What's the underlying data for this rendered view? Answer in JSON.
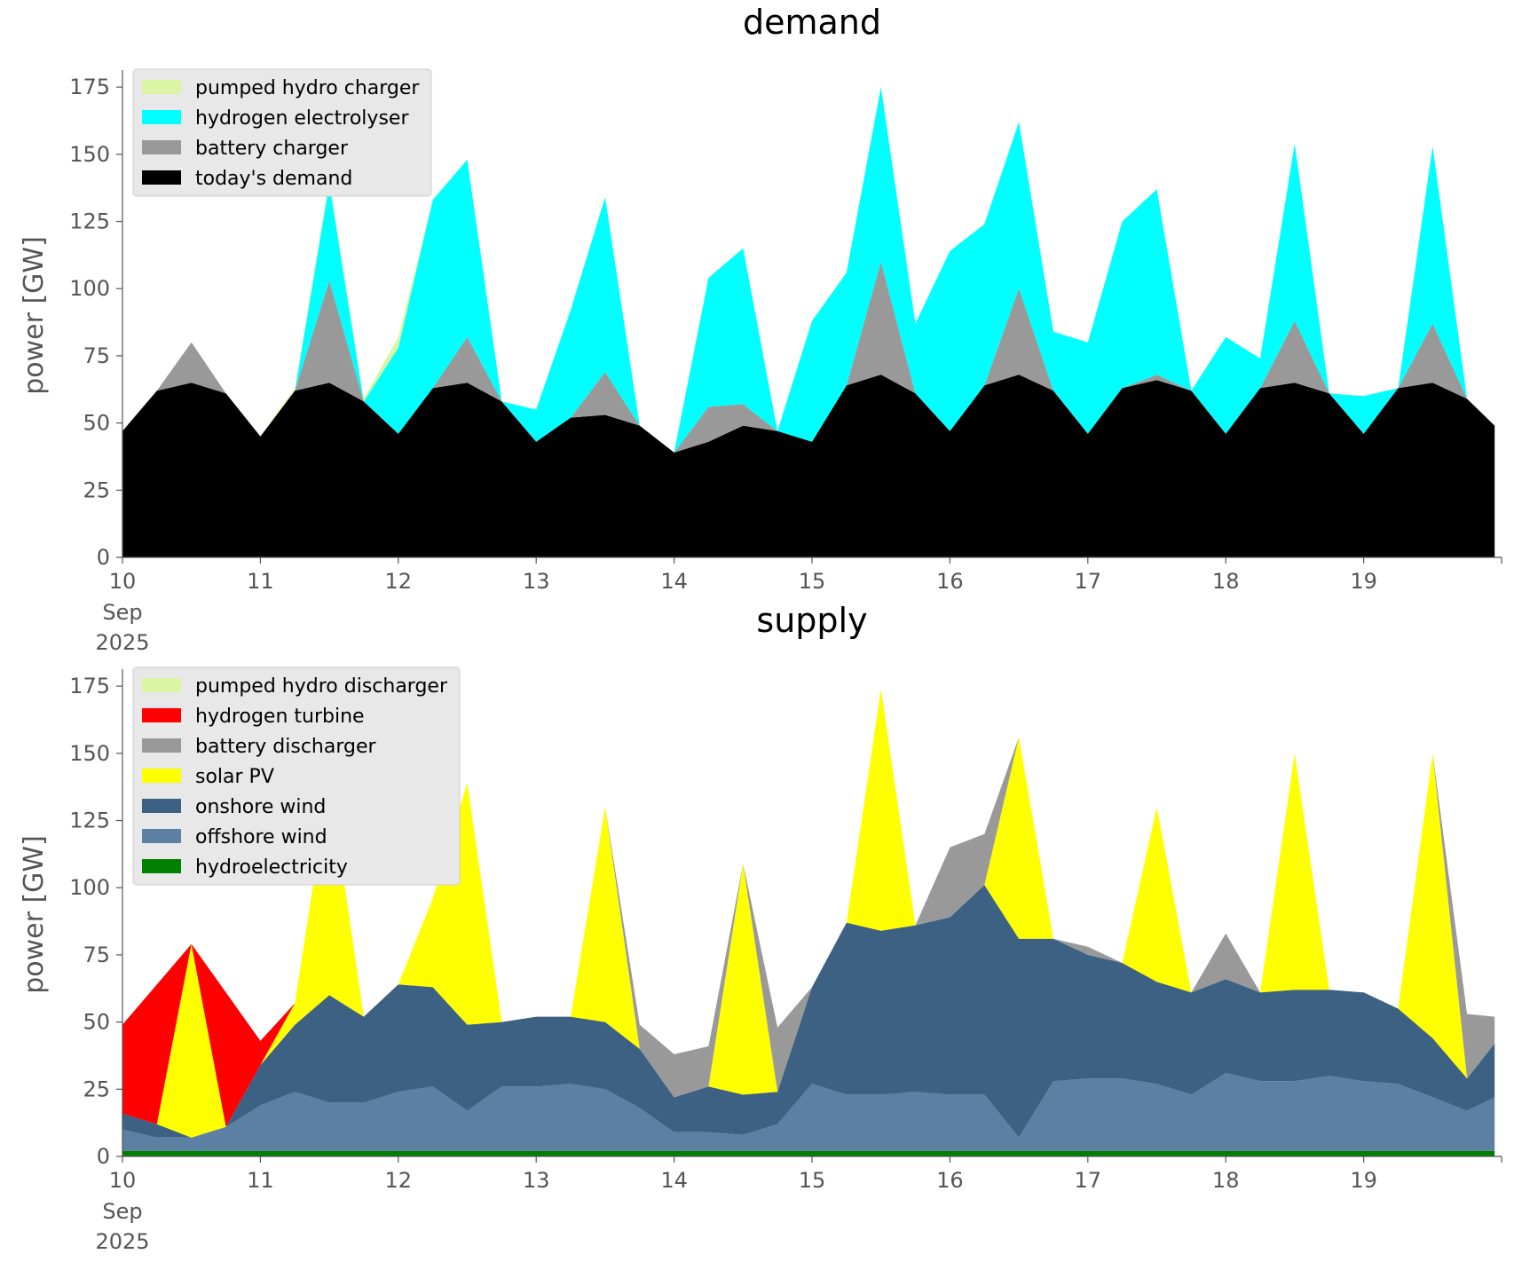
{
  "chart_data": [
    {
      "type": "area",
      "stacked": true,
      "title": "demand",
      "ylabel": "power [GW]",
      "xlabel": "",
      "ylim": [
        0,
        180
      ],
      "xlim": [
        10,
        20
      ],
      "x_tick_labels": [
        "10",
        "11",
        "12",
        "13",
        "14",
        "15",
        "16",
        "17",
        "18",
        "19"
      ],
      "x_tick_sub": [
        "Sep",
        "2025"
      ],
      "y_ticks": [
        0,
        25,
        50,
        75,
        100,
        125,
        150,
        175
      ],
      "legend_position": "top-left",
      "grid": false,
      "x": [
        10.0,
        10.25,
        10.5,
        10.75,
        11.0,
        11.25,
        11.5,
        11.75,
        12.0,
        12.25,
        12.5,
        12.75,
        13.0,
        13.25,
        13.5,
        13.75,
        14.0,
        14.25,
        14.5,
        14.75,
        15.0,
        15.25,
        15.5,
        15.75,
        16.0,
        16.25,
        16.5,
        16.75,
        17.0,
        17.25,
        17.5,
        17.75,
        18.0,
        18.25,
        18.5,
        18.75,
        19.0,
        19.25,
        19.5,
        19.75,
        19.95
      ],
      "series": [
        {
          "name": "today's demand",
          "color": "#000000",
          "values": [
            47,
            62,
            65,
            61,
            45,
            62,
            65,
            58,
            46,
            63,
            65,
            58,
            43,
            52,
            53,
            49,
            39,
            43,
            49,
            47,
            43,
            64,
            68,
            61,
            47,
            64,
            68,
            62,
            46,
            63,
            66,
            62,
            46,
            63,
            65,
            61,
            46,
            63,
            65,
            59,
            49
          ]
        },
        {
          "name": "battery charger",
          "color": "#999999",
          "values": [
            0,
            0,
            15,
            0,
            0,
            0,
            38,
            0,
            0,
            0,
            17,
            0,
            0,
            0,
            16,
            0,
            0,
            13,
            8,
            0,
            0,
            0,
            42,
            0,
            0,
            0,
            32,
            0,
            0,
            0,
            2,
            0,
            0,
            0,
            23,
            0,
            0,
            0,
            22,
            0,
            0
          ]
        },
        {
          "name": "hydrogen electrolyser",
          "color": "#00ffff",
          "values": [
            0,
            0,
            0,
            0,
            0,
            0,
            36,
            0,
            32,
            70,
            66,
            0,
            12,
            40,
            65,
            0,
            0,
            48,
            58,
            0,
            45,
            42,
            65,
            26,
            67,
            60,
            62,
            22,
            34,
            62,
            69,
            0,
            36,
            11,
            66,
            0,
            14,
            0,
            66,
            0,
            0
          ]
        },
        {
          "name": "pumped hydro charger",
          "color": "#d9f5a3",
          "values": [
            0,
            0,
            0,
            0,
            0,
            1,
            2,
            1,
            4,
            0,
            0,
            0,
            0,
            0,
            0,
            0,
            0,
            0,
            0,
            0,
            0,
            0,
            0,
            0,
            0,
            0,
            0,
            0,
            0,
            0,
            0,
            0,
            0,
            0,
            0,
            0,
            0,
            0,
            0,
            0,
            0
          ]
        }
      ],
      "legend_order": [
        "pumped hydro charger",
        "hydrogen electrolyser",
        "battery charger",
        "today's demand"
      ]
    },
    {
      "type": "area",
      "stacked": true,
      "title": "supply",
      "ylabel": "power [GW]",
      "xlabel": "",
      "ylim": [
        0,
        180
      ],
      "xlim": [
        10,
        20
      ],
      "x_tick_labels": [
        "10",
        "11",
        "12",
        "13",
        "14",
        "15",
        "16",
        "17",
        "18",
        "19"
      ],
      "x_tick_sub": [
        "Sep",
        "2025"
      ],
      "y_ticks": [
        0,
        25,
        50,
        75,
        100,
        125,
        150,
        175
      ],
      "legend_position": "top-left",
      "grid": false,
      "x": [
        10.0,
        10.25,
        10.5,
        10.75,
        11.0,
        11.25,
        11.5,
        11.75,
        12.0,
        12.25,
        12.5,
        12.75,
        13.0,
        13.25,
        13.5,
        13.75,
        14.0,
        14.25,
        14.5,
        14.75,
        15.0,
        15.25,
        15.5,
        15.75,
        16.0,
        16.25,
        16.5,
        16.75,
        17.0,
        17.25,
        17.5,
        17.75,
        18.0,
        18.25,
        18.5,
        18.75,
        19.0,
        19.25,
        19.5,
        19.75,
        19.95
      ],
      "series": [
        {
          "name": "hydroelectricity",
          "color": "#008000",
          "values": [
            2,
            2,
            2,
            2,
            2,
            2,
            2,
            2,
            2,
            2,
            2,
            2,
            2,
            2,
            2,
            2,
            2,
            2,
            2,
            2,
            2,
            2,
            2,
            2,
            2,
            2,
            2,
            2,
            2,
            2,
            2,
            2,
            2,
            2,
            2,
            2,
            2,
            2,
            2,
            2,
            2
          ]
        },
        {
          "name": "offshore wind",
          "color": "#5c80a3",
          "values": [
            8,
            5,
            5,
            9,
            17,
            22,
            18,
            18,
            22,
            24,
            15,
            24,
            24,
            25,
            23,
            16,
            7,
            7,
            6,
            10,
            25,
            21,
            21,
            22,
            21,
            21,
            5,
            26,
            27,
            27,
            25,
            21,
            29,
            26,
            26,
            28,
            26,
            25,
            20,
            15,
            20
          ]
        },
        {
          "name": "onshore wind",
          "color": "#3c6183",
          "values": [
            6,
            5,
            0,
            0,
            15,
            25,
            40,
            32,
            40,
            37,
            32,
            24,
            26,
            25,
            25,
            22,
            13,
            17,
            15,
            12,
            36,
            64,
            61,
            62,
            66,
            78,
            74,
            53,
            46,
            43,
            38,
            38,
            35,
            33,
            34,
            32,
            33,
            28,
            22,
            12,
            20
          ]
        },
        {
          "name": "solar PV",
          "color": "#ffff00",
          "values": [
            0,
            0,
            72,
            0,
            0,
            8,
            80,
            0,
            0,
            33,
            90,
            0,
            0,
            0,
            80,
            0,
            0,
            0,
            86,
            0,
            0,
            0,
            90,
            0,
            0,
            0,
            75,
            0,
            0,
            0,
            65,
            0,
            0,
            0,
            88,
            0,
            0,
            0,
            106,
            0,
            0
          ]
        },
        {
          "name": "battery discharger",
          "color": "#999999",
          "values": [
            0,
            0,
            0,
            0,
            0,
            0,
            0,
            0,
            0,
            0,
            0,
            0,
            0,
            0,
            0,
            9,
            16,
            15,
            0,
            24,
            0,
            0,
            0,
            0,
            26,
            19,
            0,
            0,
            3,
            0,
            0,
            0,
            17,
            0,
            0,
            0,
            0,
            0,
            0,
            24,
            10
          ]
        },
        {
          "name": "hydrogen turbine",
          "color": "#ff0000",
          "values": [
            33,
            52,
            0,
            50,
            9,
            0,
            0,
            0,
            0,
            0,
            0,
            0,
            0,
            0,
            0,
            0,
            0,
            0,
            0,
            0,
            0,
            0,
            0,
            0,
            0,
            0,
            0,
            0,
            0,
            0,
            0,
            0,
            0,
            0,
            0,
            0,
            0,
            0,
            0,
            0,
            0
          ]
        },
        {
          "name": "pumped hydro discharger",
          "color": "#d9f5a3",
          "values": [
            0,
            0,
            0,
            0,
            0,
            0,
            0,
            0,
            0,
            0,
            0,
            0,
            0,
            0,
            0,
            0,
            0,
            0,
            0,
            0,
            0,
            0,
            0,
            0,
            0,
            0,
            0,
            0,
            0,
            0,
            0,
            0,
            0,
            0,
            0,
            0,
            0,
            0,
            0,
            0,
            0
          ]
        }
      ],
      "legend_order": [
        "pumped hydro discharger",
        "hydrogen turbine",
        "battery discharger",
        "solar PV",
        "onshore wind",
        "offshore wind",
        "hydroelectricity"
      ]
    }
  ]
}
